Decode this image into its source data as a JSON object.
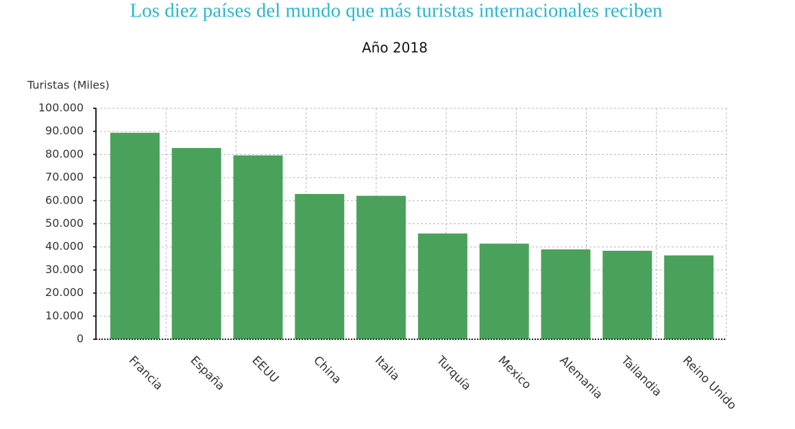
{
  "chart_data": {
    "type": "bar",
    "title": "Los diez países del mundo que más turistas internacionales reciben",
    "subtitle": "Año 2018",
    "y_label": "Turistas (Miles)",
    "categories": [
      "Francia",
      "España",
      "EEUU",
      "China",
      "Italia",
      "Turquía",
      "Mexico",
      "Alemania",
      "Tailandia",
      "Reino Unido"
    ],
    "values": [
      89400,
      82800,
      79600,
      62900,
      62100,
      45800,
      41400,
      38900,
      38300,
      36300
    ],
    "color": "#4aa15b",
    "ylim": [
      0,
      100000
    ],
    "yticks": [
      0,
      {
        "value": 10000,
        "label": "10.000"
      },
      {
        "value": 20000,
        "label": "20.000"
      },
      {
        "value": 30000,
        "label": "30.000"
      },
      {
        "value": 40000,
        "label": "40.000"
      },
      {
        "value": 50000,
        "label": "50.000"
      },
      {
        "value": 60000,
        "label": "60.000"
      },
      {
        "value": 70000,
        "label": "70.000"
      },
      {
        "value": 80000,
        "label": "80.000"
      },
      {
        "value": 90000,
        "label": "90.000"
      },
      {
        "value": 100000,
        "label": "100.000"
      }
    ],
    "grid": true
  }
}
